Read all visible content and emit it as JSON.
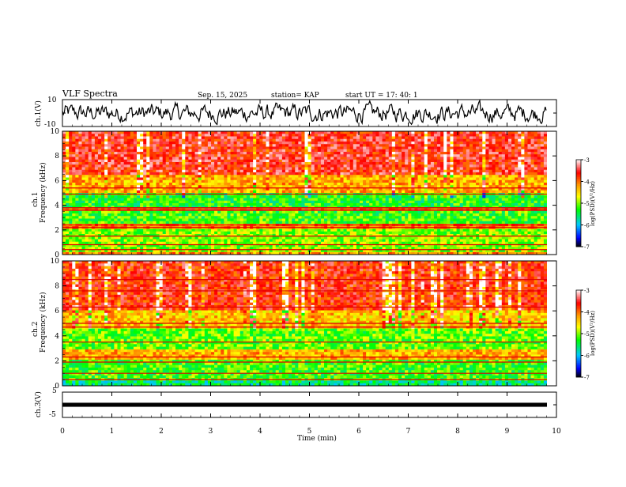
{
  "header": {
    "title": "VLF Spectra",
    "date": "Sep. 15, 2025",
    "station": "station= KAP",
    "start": "start  UT =   17: 40: 1"
  },
  "panels": {
    "ch1_wave": {
      "ylabel": "ch.1(V)",
      "ymax_label": "10",
      "ymin_label": "-10"
    },
    "ch1_spec": {
      "channel": "ch.1",
      "ylabel": "Frequency (kHz)"
    },
    "ch2_spec": {
      "channel": "ch.2",
      "ylabel": "Frequency (kHz)"
    },
    "ch3_wave": {
      "ylabel": "ch.3(V)",
      "ymax_label": "5",
      "ymin_label": "-5"
    }
  },
  "colorbar": {
    "unit": "log(PSD)(V²/Hz)",
    "ticks": [
      "-3",
      "-4",
      "-5",
      "-6",
      "-7"
    ],
    "colors": [
      "#ffffff",
      "#ff0000",
      "#ffa000",
      "#ffff00",
      "#00ff00",
      "#00ffff",
      "#0000ff",
      "#000000"
    ]
  },
  "chart_data": {
    "type": "heatmap",
    "title": "VLF Spectra",
    "xlabel": "Time (min)",
    "xlim": [
      0,
      10
    ],
    "xticks": [
      0,
      1,
      2,
      3,
      4,
      5,
      6,
      7,
      8,
      9,
      10
    ],
    "xtick_labels": [
      "0",
      "1",
      "2",
      "3",
      "4",
      "5",
      "6",
      "7",
      "8",
      "9",
      "10"
    ],
    "data_end_min": 9.8,
    "spectrograms": [
      {
        "name": "ch.1",
        "ylabel": "Frequency (kHz)",
        "ylim": [
          0,
          10
        ],
        "yticks": [
          0,
          2,
          4,
          6,
          8,
          10
        ],
        "ytick_labels": [
          "0",
          "2",
          "4",
          "6",
          "8",
          "10"
        ],
        "zlim": [
          -7,
          -3
        ],
        "bands": [
          {
            "f_lo": 0,
            "f_hi": 0.3,
            "level": -4.2
          },
          {
            "f_lo": 0.3,
            "f_hi": 2.0,
            "level": -5.0
          },
          {
            "f_lo": 2.0,
            "f_hi": 2.6,
            "level": -4.0
          },
          {
            "f_lo": 2.6,
            "f_hi": 3.5,
            "level": -5.2
          },
          {
            "f_lo": 3.5,
            "f_hi": 3.8,
            "level": -3.8
          },
          {
            "f_lo": 3.8,
            "f_hi": 5.0,
            "level": -5.3
          },
          {
            "f_lo": 5.0,
            "f_hi": 6.5,
            "level": -4.3
          },
          {
            "f_lo": 6.5,
            "f_hi": 10.0,
            "level": -3.6
          }
        ],
        "lines_khz": [
          0.4,
          0.8,
          1.5,
          2.2,
          2.4,
          3.6,
          3.8,
          4.9,
          5.4
        ]
      },
      {
        "name": "ch.2",
        "ylabel": "Frequency (kHz)",
        "ylim": [
          0,
          10
        ],
        "yticks": [
          0,
          2,
          4,
          6,
          8,
          10
        ],
        "ytick_labels": [
          "0",
          "2",
          "4",
          "6",
          "8",
          "10"
        ],
        "zlim": [
          -7,
          -3
        ],
        "bands": [
          {
            "f_lo": 0,
            "f_hi": 0.5,
            "level": -5.6
          },
          {
            "f_lo": 0.5,
            "f_hi": 2.0,
            "level": -5.2
          },
          {
            "f_lo": 2.0,
            "f_hi": 3.0,
            "level": -4.3
          },
          {
            "f_lo": 3.0,
            "f_hi": 4.5,
            "level": -5.1
          },
          {
            "f_lo": 4.5,
            "f_hi": 6.0,
            "level": -4.4
          },
          {
            "f_lo": 6.0,
            "f_hi": 10.0,
            "level": -3.7
          }
        ],
        "lines_khz": [
          0.5,
          1.0,
          1.9,
          2.3,
          3.5,
          4.7,
          5.0,
          6.3,
          7.6,
          8.5
        ]
      }
    ],
    "waveforms": [
      {
        "name": "ch.1(V)",
        "ylim": [
          -10,
          10
        ],
        "amplitude": 4.5
      },
      {
        "name": "ch.3(V)",
        "ylim": [
          -5,
          5
        ],
        "amplitude": 0.8
      }
    ]
  }
}
